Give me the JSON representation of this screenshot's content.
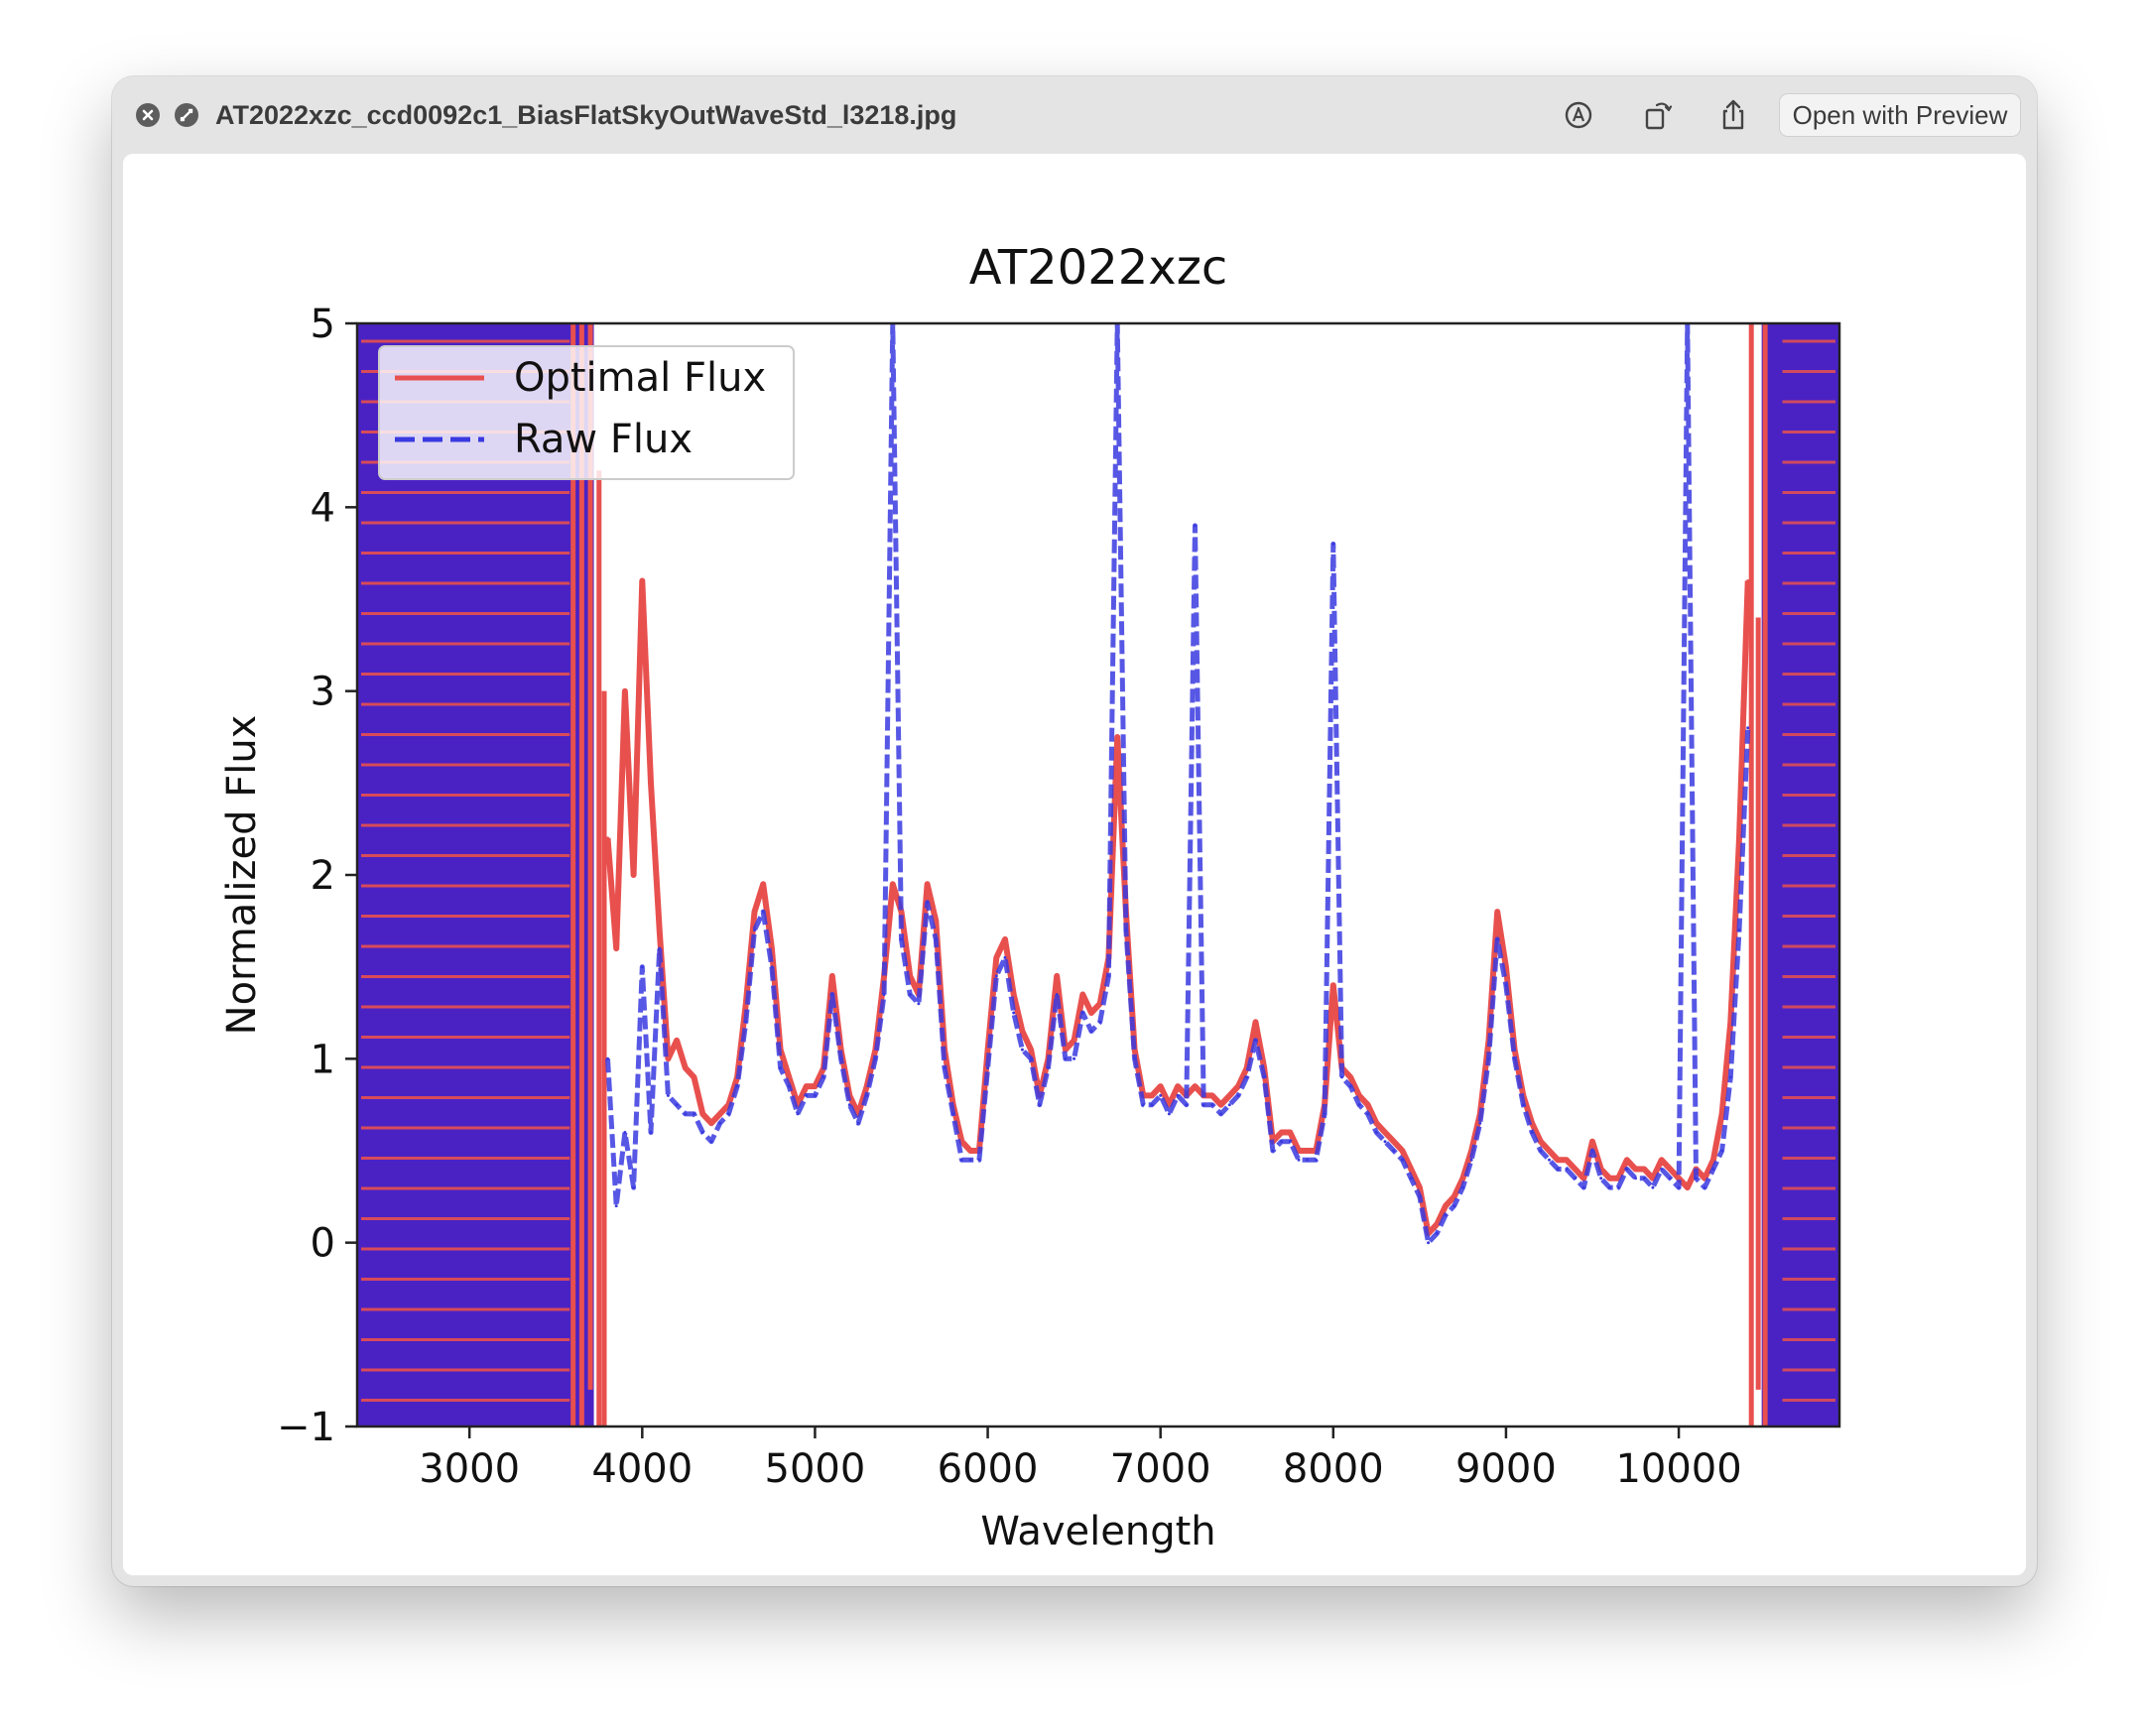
{
  "window": {
    "filename": "AT2022xzc_ccd0092c1_BiasFlatSkyOutWaveStd_l3218.jpg",
    "open_with_label": "Open with Preview",
    "icons": [
      "close-icon",
      "full-screen-icon",
      "markup-icon",
      "rotate-icon",
      "share-icon",
      "live-text-icon"
    ]
  },
  "chart_data": {
    "type": "line",
    "title": "AT2022xzc",
    "xlabel": "Wavelength",
    "ylabel": "Normalized Flux",
    "xlim": [
      2350,
      10930
    ],
    "ylim": [
      -1,
      5
    ],
    "xticks": [
      3000,
      4000,
      5000,
      6000,
      7000,
      8000,
      9000,
      10000
    ],
    "yticks": [
      -1,
      0,
      1,
      2,
      3,
      4,
      5
    ],
    "grid": false,
    "legend_position": "top-left",
    "series": [
      {
        "name": "Optimal Flux",
        "color": "#e8504e",
        "style": "solid",
        "x": [
          3800,
          3850,
          3900,
          3950,
          4000,
          4050,
          4100,
          4150,
          4200,
          4250,
          4300,
          4350,
          4400,
          4450,
          4500,
          4550,
          4600,
          4650,
          4700,
          4750,
          4800,
          4850,
          4900,
          4950,
          5000,
          5050,
          5100,
          5150,
          5200,
          5250,
          5300,
          5350,
          5400,
          5450,
          5500,
          5550,
          5600,
          5650,
          5700,
          5750,
          5800,
          5850,
          5900,
          5950,
          6000,
          6050,
          6100,
          6150,
          6200,
          6250,
          6300,
          6350,
          6400,
          6450,
          6500,
          6550,
          6600,
          6650,
          6700,
          6750,
          6800,
          6850,
          6900,
          6950,
          7000,
          7050,
          7100,
          7150,
          7200,
          7250,
          7300,
          7350,
          7400,
          7450,
          7500,
          7550,
          7600,
          7650,
          7700,
          7750,
          7800,
          7850,
          7900,
          7950,
          8000,
          8050,
          8100,
          8150,
          8200,
          8250,
          8300,
          8350,
          8400,
          8450,
          8500,
          8550,
          8600,
          8650,
          8700,
          8750,
          8800,
          8850,
          8900,
          8950,
          9000,
          9050,
          9100,
          9150,
          9200,
          9250,
          9300,
          9350,
          9400,
          9450,
          9500,
          9550,
          9600,
          9650,
          9700,
          9750,
          9800,
          9850,
          9900,
          9950,
          10000,
          10050,
          10100,
          10150,
          10200,
          10250,
          10300,
          10350,
          10400
        ],
        "y": [
          2.2,
          1.6,
          3.0,
          2.0,
          3.6,
          2.5,
          1.7,
          1.0,
          1.1,
          0.95,
          0.9,
          0.7,
          0.65,
          0.7,
          0.75,
          0.9,
          1.3,
          1.8,
          1.95,
          1.6,
          1.05,
          0.9,
          0.75,
          0.85,
          0.85,
          0.95,
          1.45,
          1.05,
          0.8,
          0.7,
          0.85,
          1.05,
          1.45,
          1.95,
          1.8,
          1.45,
          1.35,
          1.95,
          1.75,
          1.05,
          0.75,
          0.55,
          0.5,
          0.5,
          1.05,
          1.55,
          1.65,
          1.35,
          1.15,
          1.05,
          0.8,
          1.0,
          1.45,
          1.05,
          1.1,
          1.35,
          1.25,
          1.3,
          1.55,
          2.75,
          1.8,
          1.05,
          0.8,
          0.8,
          0.85,
          0.75,
          0.85,
          0.8,
          0.85,
          0.8,
          0.8,
          0.75,
          0.8,
          0.85,
          0.95,
          1.2,
          0.95,
          0.55,
          0.6,
          0.6,
          0.5,
          0.5,
          0.5,
          0.75,
          1.4,
          0.95,
          0.9,
          0.8,
          0.75,
          0.65,
          0.6,
          0.55,
          0.5,
          0.4,
          0.3,
          0.05,
          0.1,
          0.2,
          0.25,
          0.35,
          0.5,
          0.7,
          1.1,
          1.8,
          1.5,
          1.05,
          0.8,
          0.65,
          0.55,
          0.5,
          0.45,
          0.45,
          0.4,
          0.35,
          0.55,
          0.4,
          0.35,
          0.35,
          0.45,
          0.4,
          0.4,
          0.35,
          0.45,
          0.4,
          0.35,
          0.3,
          0.4,
          0.35,
          0.45,
          0.7,
          1.2,
          2.2,
          3.6
        ]
      },
      {
        "name": "Raw Flux",
        "color": "#3a3ae0",
        "style": "dashed",
        "x": [
          3800,
          3850,
          3900,
          3950,
          4000,
          4050,
          4100,
          4150,
          4200,
          4250,
          4300,
          4350,
          4400,
          4450,
          4500,
          4550,
          4600,
          4650,
          4700,
          4750,
          4800,
          4850,
          4900,
          4950,
          5000,
          5050,
          5100,
          5150,
          5200,
          5250,
          5300,
          5350,
          5400,
          5450,
          5500,
          5550,
          5600,
          5650,
          5700,
          5750,
          5800,
          5850,
          5900,
          5950,
          6000,
          6050,
          6100,
          6150,
          6200,
          6250,
          6300,
          6350,
          6400,
          6450,
          6500,
          6550,
          6600,
          6650,
          6700,
          6750,
          6800,
          6850,
          6900,
          6950,
          7000,
          7050,
          7100,
          7150,
          7200,
          7250,
          7300,
          7350,
          7400,
          7450,
          7500,
          7550,
          7600,
          7650,
          7700,
          7750,
          7800,
          7850,
          7900,
          7950,
          8000,
          8050,
          8100,
          8150,
          8200,
          8250,
          8300,
          8350,
          8400,
          8450,
          8500,
          8550,
          8600,
          8650,
          8700,
          8750,
          8800,
          8850,
          8900,
          8950,
          9000,
          9050,
          9100,
          9150,
          9200,
          9250,
          9300,
          9350,
          9400,
          9450,
          9500,
          9550,
          9600,
          9650,
          9700,
          9750,
          9800,
          9850,
          9900,
          9950,
          10000,
          10050,
          10100,
          10150,
          10200,
          10250,
          10300,
          10350,
          10400
        ],
        "y": [
          1.0,
          0.2,
          0.6,
          0.3,
          1.5,
          0.6,
          1.6,
          0.8,
          0.75,
          0.7,
          0.7,
          0.6,
          0.55,
          0.65,
          0.7,
          0.85,
          1.2,
          1.7,
          1.8,
          1.5,
          0.95,
          0.85,
          0.7,
          0.8,
          0.8,
          0.9,
          1.35,
          1.0,
          0.75,
          0.65,
          0.8,
          1.0,
          1.35,
          5.0,
          1.65,
          1.35,
          1.3,
          1.85,
          1.65,
          0.95,
          0.7,
          0.45,
          0.45,
          0.45,
          0.95,
          1.45,
          1.55,
          1.25,
          1.05,
          1.0,
          0.75,
          0.95,
          1.35,
          1.0,
          1.0,
          1.25,
          1.15,
          1.2,
          1.45,
          5.0,
          1.7,
          1.0,
          0.75,
          0.75,
          0.8,
          0.7,
          0.8,
          0.75,
          3.9,
          0.75,
          0.75,
          0.7,
          0.75,
          0.8,
          0.9,
          1.1,
          0.9,
          0.5,
          0.55,
          0.55,
          0.45,
          0.45,
          0.45,
          0.7,
          3.8,
          0.9,
          0.85,
          0.75,
          0.7,
          0.6,
          0.55,
          0.5,
          0.45,
          0.35,
          0.25,
          0.0,
          0.05,
          0.15,
          0.2,
          0.3,
          0.45,
          0.65,
          1.0,
          1.65,
          1.4,
          1.0,
          0.75,
          0.6,
          0.5,
          0.45,
          0.4,
          0.4,
          0.35,
          0.3,
          0.5,
          0.35,
          0.3,
          0.3,
          0.4,
          0.35,
          0.35,
          0.3,
          0.4,
          0.35,
          0.3,
          5.0,
          0.35,
          0.3,
          0.4,
          0.5,
          0.9,
          1.7,
          2.8
        ]
      }
    ]
  }
}
